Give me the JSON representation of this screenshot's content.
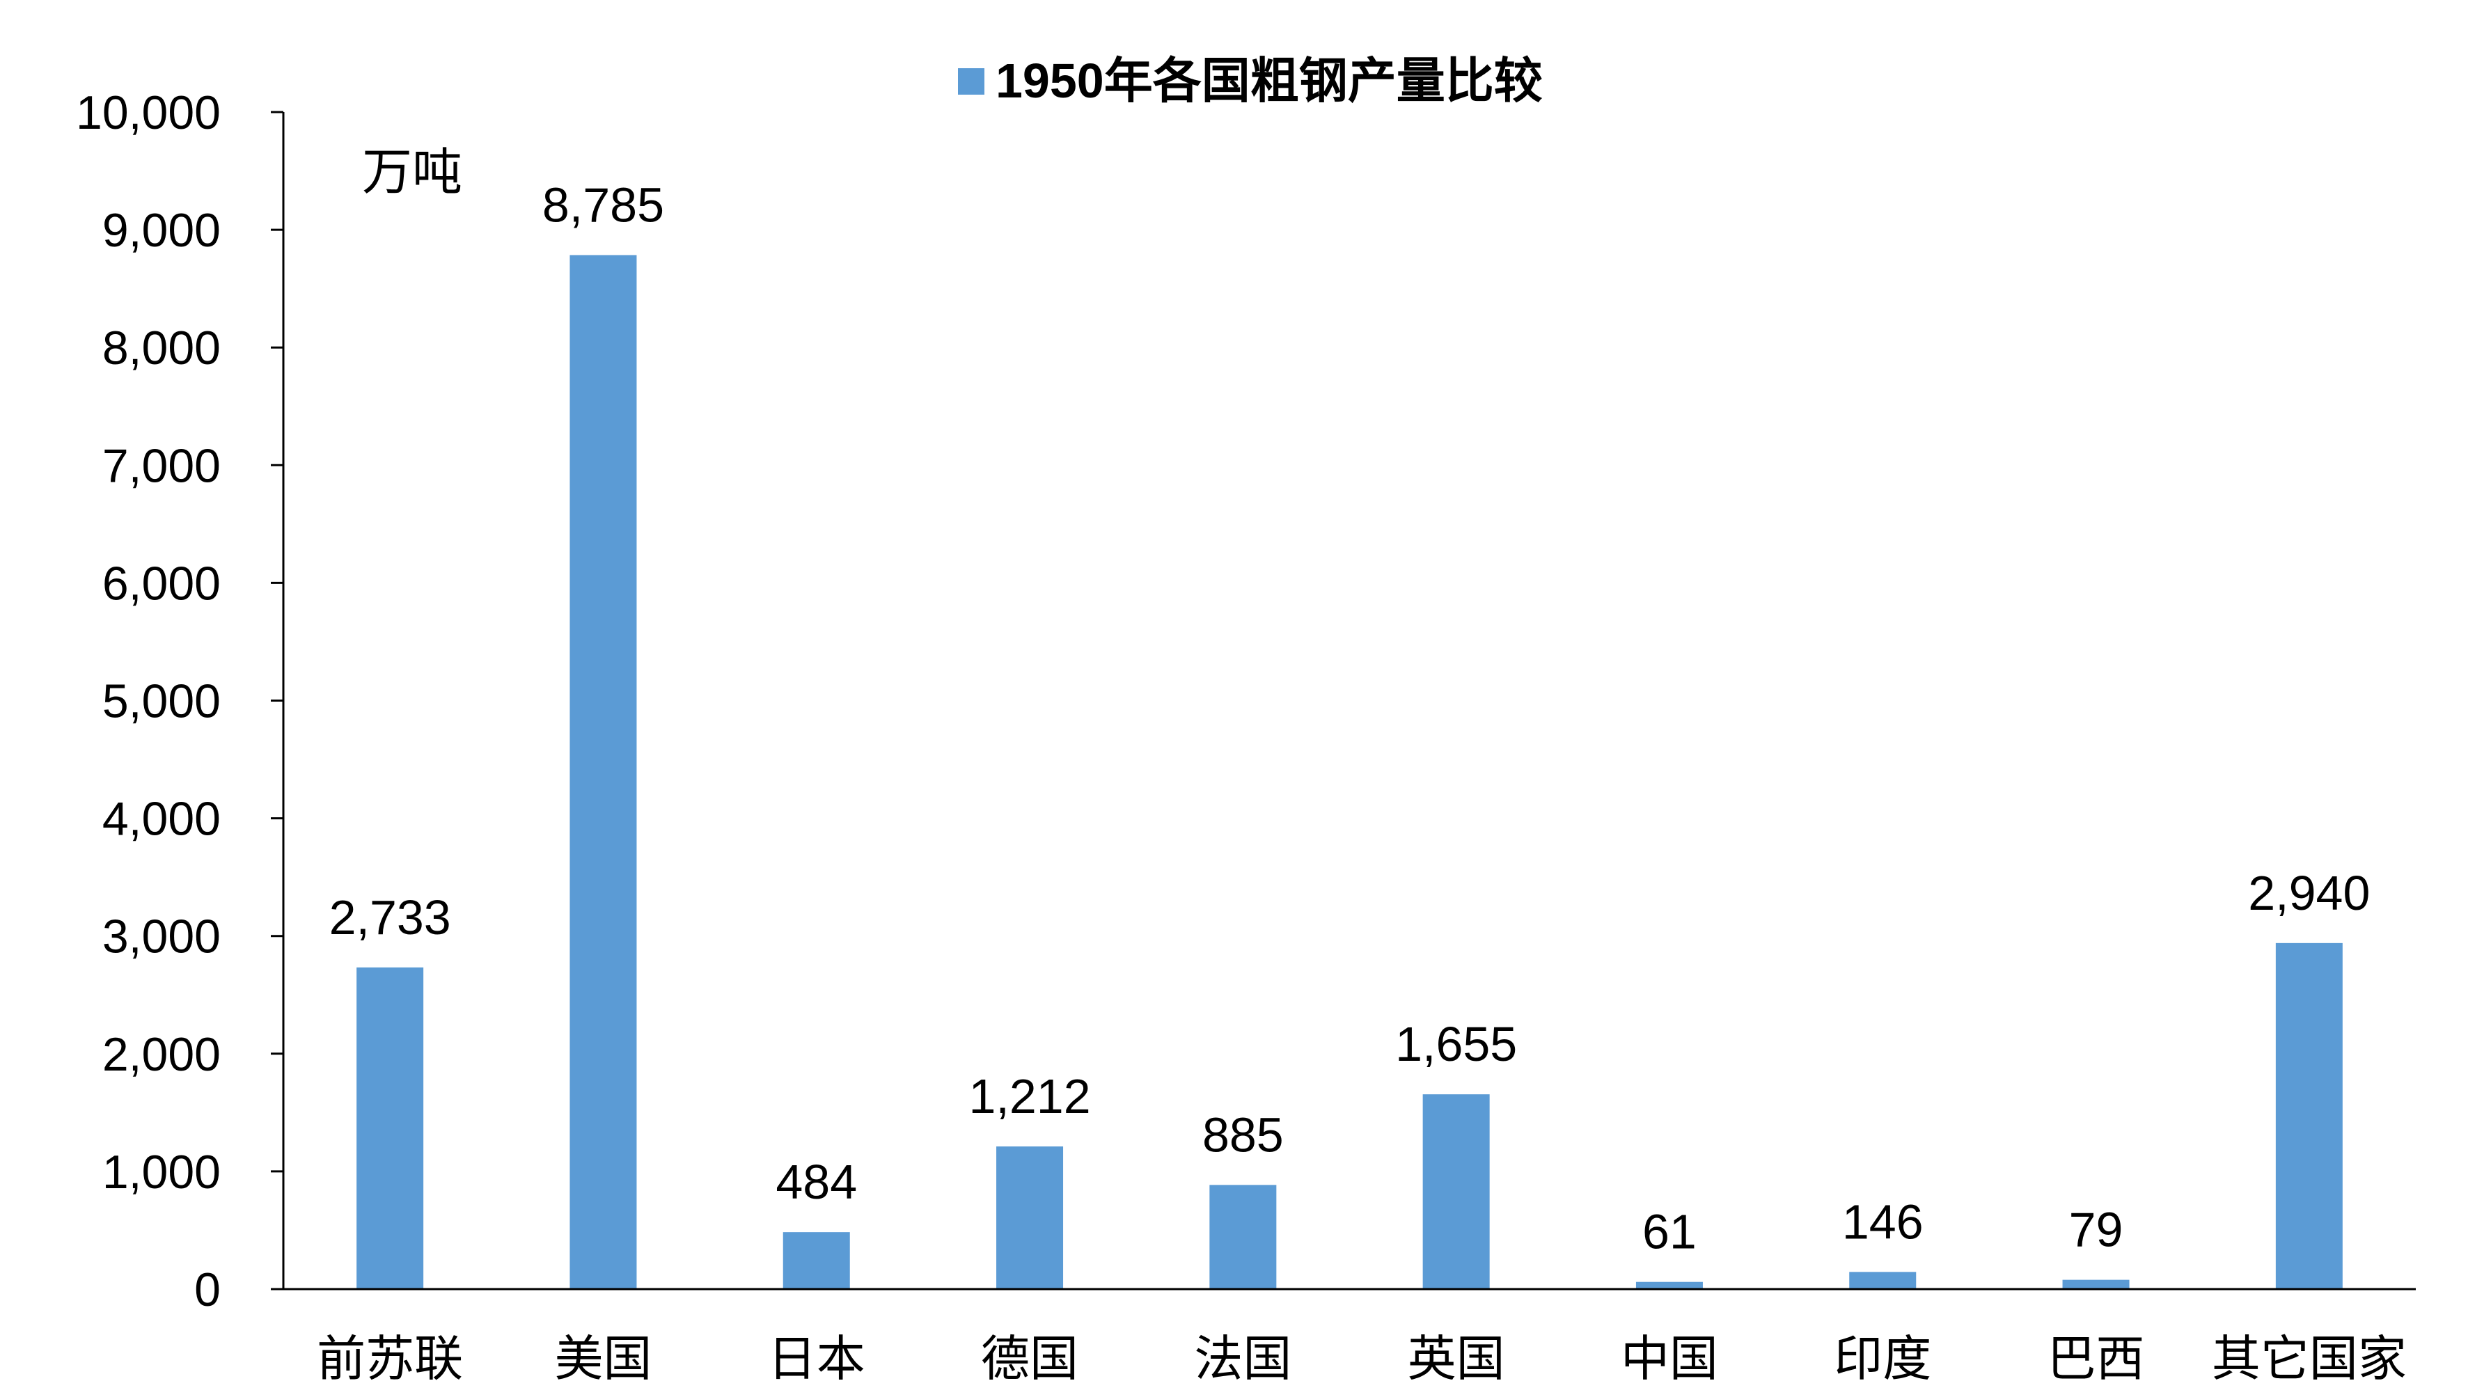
{
  "chart_data": {
    "type": "bar",
    "title": "",
    "legend": {
      "placement": "top-center",
      "entries": [
        "1950年各国粗钢产量比较"
      ]
    },
    "unit": "万吨",
    "xlabel": "",
    "ylabel": "",
    "ylim": [
      0,
      10000
    ],
    "yticks": [
      "0",
      "1,000",
      "2,000",
      "3,000",
      "4,000",
      "5,000",
      "6,000",
      "7,000",
      "8,000",
      "9,000",
      "10,000"
    ],
    "ytick_values": [
      0,
      1000,
      2000,
      3000,
      4000,
      5000,
      6000,
      7000,
      8000,
      9000,
      10000
    ],
    "grid": false,
    "bar_color": "#5B9BD5",
    "categories": [
      "前苏联",
      "美国",
      "日本",
      "德国",
      "法国",
      "英国",
      "中国",
      "印度",
      "巴西",
      "其它国家"
    ],
    "series": [
      {
        "name": "1950年各国粗钢产量比较",
        "values": [
          2733,
          8785,
          484,
          1212,
          885,
          1655,
          61,
          146,
          79,
          2940
        ],
        "labels": [
          "2,733",
          "8,785",
          "484",
          "1,212",
          "885",
          "1,655",
          "61",
          "146",
          "79",
          "2,940"
        ]
      }
    ]
  }
}
